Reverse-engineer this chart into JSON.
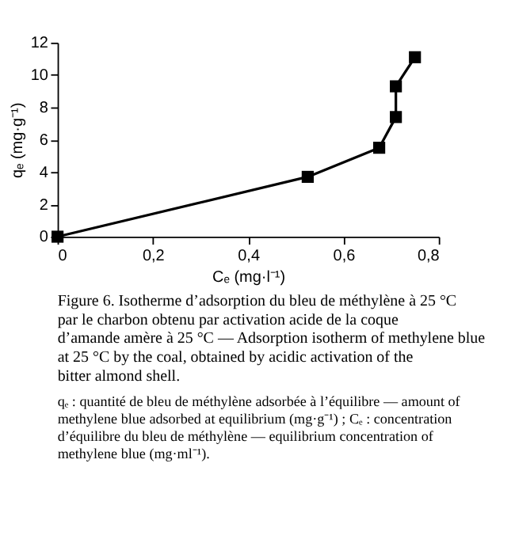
{
  "chart_data": {
    "type": "line",
    "xlabel": "Cₑ (mg·l⁻¹)",
    "ylabel": "qₑ (mg·g⁻¹)",
    "x": [
      0,
      0.525,
      0.675,
      0.71,
      0.71,
      0.75
    ],
    "series": [
      {
        "color": "#000000",
        "values": [
          0,
          3.7,
          5.5,
          7.4,
          9.3,
          11.1
        ]
      }
    ],
    "xlim": [
      0,
      0.8
    ],
    "ylim": [
      0,
      12
    ],
    "xticks": [
      0,
      {
        "value": 0.2,
        "label": "0,2"
      },
      {
        "value": 0.4,
        "label": "0,4"
      },
      {
        "value": 0.6,
        "label": "0,6"
      },
      {
        "value": 0.8,
        "label": "0,8"
      }
    ],
    "yticks": [
      0,
      2,
      4,
      6,
      8,
      10,
      12
    ],
    "marker": "square",
    "line_style": "solid",
    "grid": false,
    "annotations": [
      "Figure 6. Isotherme d’adsorption du bleu de méthylène à 25 °C par le charbon obtenu par activation acide de la coque d’amande amère à 25 °C — Adsorption isotherm of methylene blue at 25 °C by the coal, obtained by acidic activation of the bitter almond shell.",
      "qₑ : quantité de bleu de méthylène adsorbée à l’équilibre — amount of methylene blue adsorbed at equilibrium (mg·g⁻¹) ; Cₑ : concentration d’équilibre du bleu de méthylène — equilibrium concentration of methylene blue (mg·ml⁻¹)."
    ]
  }
}
